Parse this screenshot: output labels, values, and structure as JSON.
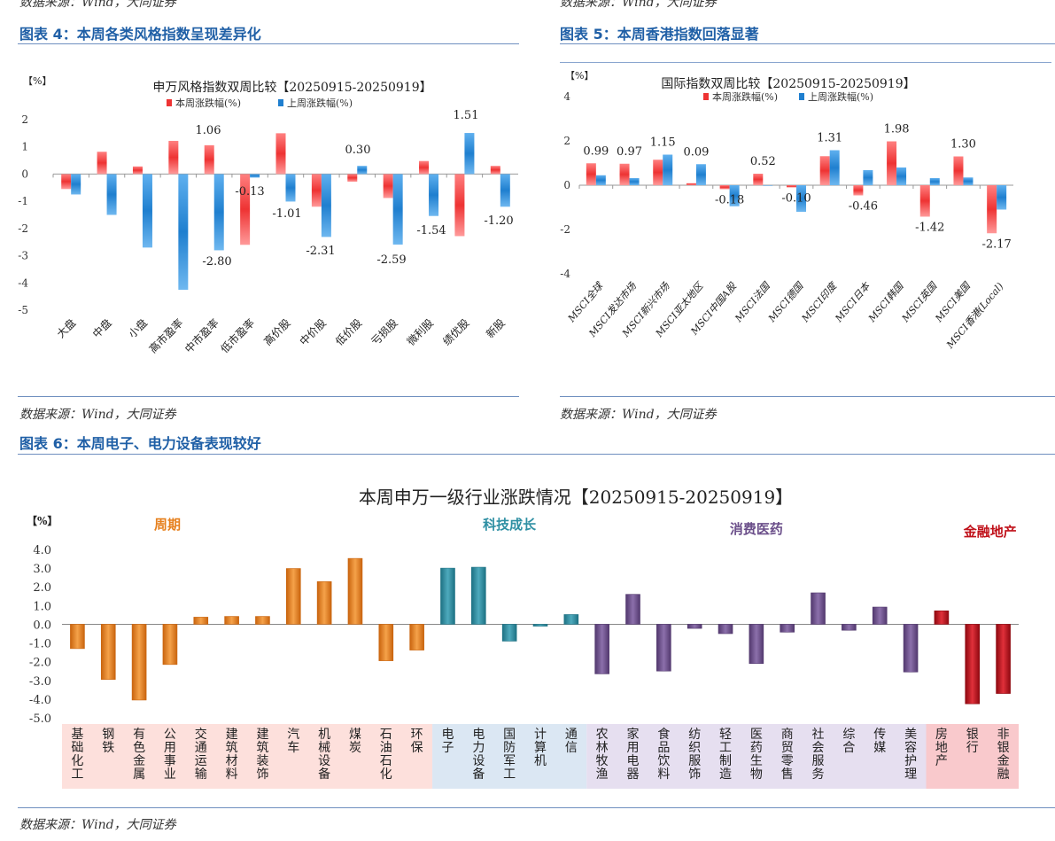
{
  "sources": {
    "top_left": "数据来源：Wind，大同证券",
    "top_right": "数据来源：Wind，大同证券",
    "mid_left": "数据来源：Wind，大同证券",
    "mid_right": "数据来源：Wind，大同证券",
    "bottom": "数据来源：Wind，大同证券"
  },
  "figures": {
    "fig4_title": "图表 4：本周各类风格指数呈现差异化",
    "fig5_title": "图表 5：本周香港指数回落显著",
    "fig6_title": "图表 6：本周电子、电力设备表现较好"
  },
  "colors": {
    "this_week": "#ee3333",
    "last_week": "#1f7fcf",
    "cycle": "#e6801e",
    "tech": "#2e8fa3",
    "consumer": "#6b4f8a",
    "finance": "#c0111a",
    "title_blue": "#1f5fa6"
  },
  "chart_data": [
    {
      "type": "bar",
      "title": "申万风格指数双周比较【20250915-20250919】",
      "unit_label": "【%】",
      "categories": [
        "大盘",
        "中盘",
        "小盘",
        "高市盈率",
        "中市盈率",
        "低市盈率",
        "高价股",
        "中价股",
        "低价股",
        "亏损股",
        "微利股",
        "绩优股",
        "新股"
      ],
      "series": [
        {
          "name": "本周涨跌幅(%)",
          "values": [
            -0.55,
            0.82,
            0.28,
            1.22,
            1.06,
            -2.6,
            1.5,
            -1.2,
            -0.28,
            -0.88,
            0.48,
            -2.28,
            0.3
          ]
        },
        {
          "name": "上周涨跌幅(%)",
          "values": [
            -0.75,
            -1.5,
            -2.7,
            -4.25,
            -2.8,
            -0.13,
            -1.01,
            -2.31,
            0.3,
            -2.59,
            -1.54,
            1.51,
            -1.2
          ]
        }
      ],
      "data_labels": [
        {
          "category": "中市盈率",
          "text": "1.06"
        },
        {
          "category": "中市盈率",
          "text": "-2.80"
        },
        {
          "category": "低市盈率",
          "text": "-0.13"
        },
        {
          "category": "高价股",
          "text": "-1.01"
        },
        {
          "category": "中价股",
          "text": "-2.31"
        },
        {
          "category": "低价股",
          "text": "0.30"
        },
        {
          "category": "亏损股",
          "text": "-2.59"
        },
        {
          "category": "微利股",
          "text": "-1.54"
        },
        {
          "category": "绩优股",
          "text": "1.51"
        },
        {
          "category": "新股",
          "text": "-1.20"
        }
      ],
      "ylim": [
        -5,
        2
      ],
      "yticks": [
        -5,
        -4,
        -3,
        -2,
        -1,
        0,
        1,
        2
      ]
    },
    {
      "type": "bar",
      "title": "国际指数双周比较【20250915-20250919】",
      "unit_label": "【%】",
      "categories": [
        "MSCI全球",
        "MSCI发达市场",
        "MSCI新兴市场",
        "MSCI亚太地区",
        "MSCI中国A股",
        "MSCI法国",
        "MSCI德国",
        "MSCI印度",
        "MSCI日本",
        "MSCI韩国",
        "MSCI英国",
        "MSCI美国",
        "MSCI香港(Local)"
      ],
      "series": [
        {
          "name": "本周涨跌幅(%)",
          "values": [
            0.99,
            0.97,
            1.15,
            0.09,
            -0.18,
            0.52,
            -0.1,
            1.31,
            -0.46,
            1.98,
            -1.42,
            1.3,
            -2.17
          ]
        },
        {
          "name": "上周涨跌幅(%)",
          "values": [
            0.45,
            0.32,
            1.38,
            0.95,
            -0.95,
            0.0,
            -1.2,
            1.58,
            0.68,
            0.8,
            0.32,
            0.35,
            -1.1
          ]
        }
      ],
      "data_labels": [
        "0.99",
        "0.97",
        "1.15",
        "0.09",
        "-0.18",
        "0.52",
        "-0.10",
        "1.31",
        "-0.46",
        "1.98",
        "-1.42",
        "1.30",
        "-2.17"
      ],
      "ylim": [
        -4,
        4
      ],
      "yticks": [
        -4,
        -2,
        0,
        2,
        4
      ]
    },
    {
      "type": "bar",
      "title": "本周申万一级行业涨跌情况【20250915-20250919】",
      "unit_label": "【%】",
      "groups": [
        {
          "name": "周期",
          "color_key": "cycle",
          "categories": [
            "基础化工",
            "钢铁",
            "有色金属",
            "公用事业",
            "交通运输",
            "建筑材料",
            "建筑装饰",
            "汽车",
            "机械设备",
            "煤炭",
            "石油石化",
            "环保"
          ],
          "values": [
            -1.3,
            -2.95,
            -4.05,
            -2.15,
            0.38,
            0.42,
            0.42,
            2.98,
            2.28,
            3.52,
            -1.95,
            -1.38
          ]
        },
        {
          "name": "科技成长",
          "color_key": "tech",
          "categories": [
            "电子",
            "电力设备",
            "国防军工",
            "计算机",
            "通信"
          ],
          "values": [
            3.0,
            3.05,
            -0.9,
            -0.1,
            0.52
          ]
        },
        {
          "name": "消费医药",
          "color_key": "consumer",
          "categories": [
            "农林牧渔",
            "家用电器",
            "食品饮料",
            "纺织服饰",
            "轻工制造",
            "医药生物",
            "商贸零售",
            "社会服务",
            "综合",
            "传媒",
            "美容护理"
          ],
          "values": [
            -2.65,
            1.6,
            -2.5,
            -0.22,
            -0.5,
            -2.1,
            -0.42,
            1.68,
            -0.32,
            0.92,
            -2.55
          ]
        },
        {
          "name": "金融地产",
          "color_key": "finance",
          "categories": [
            "房地产",
            "银行",
            "非银金融"
          ],
          "values": [
            0.72,
            -4.25,
            -3.7
          ]
        }
      ],
      "ylim": [
        -5,
        4
      ],
      "yticks": [
        "-5.0",
        "-4.0",
        "-3.0",
        "-2.0",
        "-1.0",
        "0.0",
        "1.0",
        "2.0",
        "3.0",
        "4.0"
      ]
    }
  ]
}
